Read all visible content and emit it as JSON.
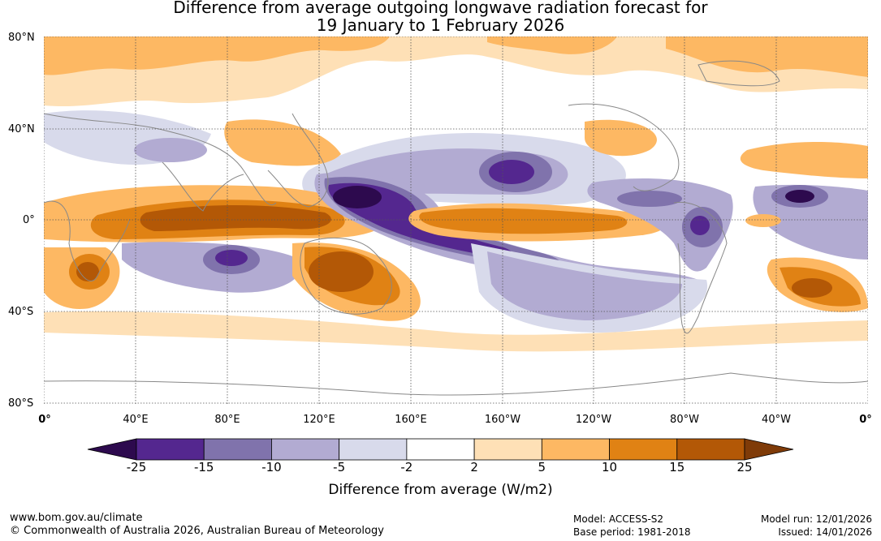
{
  "title_line1": "Difference from average outgoing longwave radiation forecast for",
  "title_line2": "19 January to 1 February 2026",
  "map": {
    "lat_labels": [
      "80°N",
      "40°N",
      "0°",
      "40°S",
      "80°S"
    ],
    "lon_labels": [
      "0°",
      "40°E",
      "80°E",
      "120°E",
      "160°E",
      "160°W",
      "120°W",
      "80°W",
      "40°W",
      "0°"
    ]
  },
  "colorbar": {
    "thresholds": [
      "-25",
      "-15",
      "-10",
      "-5",
      "-2",
      "2",
      "5",
      "10",
      "15",
      "25"
    ],
    "colors": [
      "#2d0a4e",
      "#54278f",
      "#8073ac",
      "#b2abd2",
      "#d8daeb",
      "#ffffff",
      "#fee0b6",
      "#fdb863",
      "#e08214",
      "#b35806",
      "#7f3b08"
    ],
    "label": "Difference from average (W/m2)"
  },
  "footer": {
    "website": "www.bom.gov.au/climate",
    "copyright": "© Commonwealth of Australia 2026, Australian Bureau of Meteorology",
    "model": "Model: ACCESS-S2",
    "base_period": "Base period: 1981-2018",
    "model_run": "Model run: 12/01/2026",
    "issued": "Issued: 14/01/2026"
  }
}
